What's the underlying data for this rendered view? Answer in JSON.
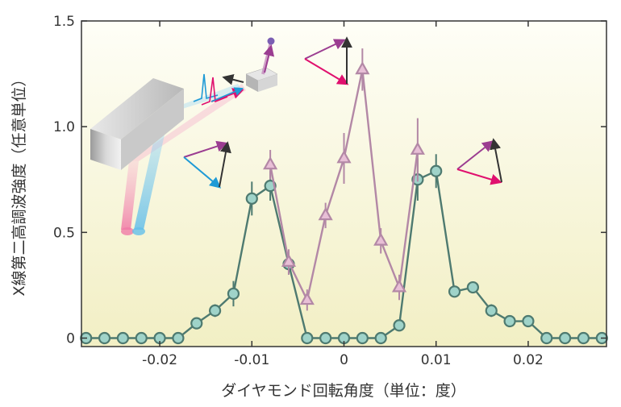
{
  "chart_data": {
    "type": "line",
    "title": "",
    "xlabel": "ダイヤモンド回転角度（単位：度）",
    "ylabel": "X線第二高調波強度（任意単位）",
    "xlim": [
      -0.0285,
      0.0285
    ],
    "ylim": [
      -0.04,
      1.5
    ],
    "xticks": [
      -0.02,
      -0.01,
      0,
      0.01,
      0.02
    ],
    "xtick_labels": [
      "-0.02",
      "-0.01",
      "0",
      "0.01",
      "0.02"
    ],
    "yticks": [
      0,
      0.5,
      1.0,
      1.5
    ],
    "ytick_labels": [
      "0",
      "0.5",
      "1.0",
      "1.5"
    ],
    "series": [
      {
        "name": "",
        "marker": "circle",
        "color": "#4e7a70",
        "fill": "#9fd3c9",
        "x": [
          -0.028,
          -0.026,
          -0.024,
          -0.022,
          -0.02,
          -0.018,
          -0.016,
          -0.014,
          -0.012,
          -0.01,
          -0.008,
          -0.006,
          -0.004,
          -0.002,
          0.0,
          0.002,
          0.004,
          0.006,
          0.008,
          0.01,
          0.012,
          0.014,
          0.016,
          0.018,
          0.02,
          0.022,
          0.024,
          0.026,
          0.028
        ],
        "y": [
          0,
          0,
          0,
          0,
          0,
          0,
          0.07,
          0.13,
          0.21,
          0.66,
          0.72,
          0.35,
          0,
          0,
          0,
          0,
          0,
          0.06,
          0.75,
          0.79,
          0.22,
          0.24,
          0.13,
          0.08,
          0.08,
          0,
          0,
          0,
          0
        ],
        "err": [
          0,
          0,
          0,
          0,
          0,
          0,
          0,
          0.03,
          0.06,
          0.08,
          0.07,
          0.05,
          0,
          0,
          0,
          0,
          0,
          0,
          0.1,
          0.08,
          0,
          0,
          0.03,
          0,
          0,
          0,
          0,
          0,
          0
        ]
      },
      {
        "name": "",
        "marker": "triangle",
        "color": "#b388a6",
        "fill": "#e8bfd6",
        "x": [
          -0.008,
          -0.006,
          -0.004,
          -0.002,
          0.0,
          0.002,
          0.004,
          0.006,
          0.008
        ],
        "y": [
          0.82,
          0.36,
          0.18,
          0.58,
          0.85,
          1.27,
          0.46,
          0.24,
          0.89
        ],
        "err": [
          0.07,
          0.06,
          0.05,
          0.06,
          0.12,
          0.1,
          0.06,
          0.06,
          0.15
        ]
      }
    ],
    "background_gradient": [
      "#fefef7",
      "#f2efc4"
    ],
    "inset": {
      "description_colors": {
        "pink": "#f07aa6",
        "blue": "#64bfea",
        "purple": "#9b3d91",
        "magenta": "#e0106e",
        "cyan": "#1e9ad6",
        "black": "#333333"
      }
    }
  }
}
